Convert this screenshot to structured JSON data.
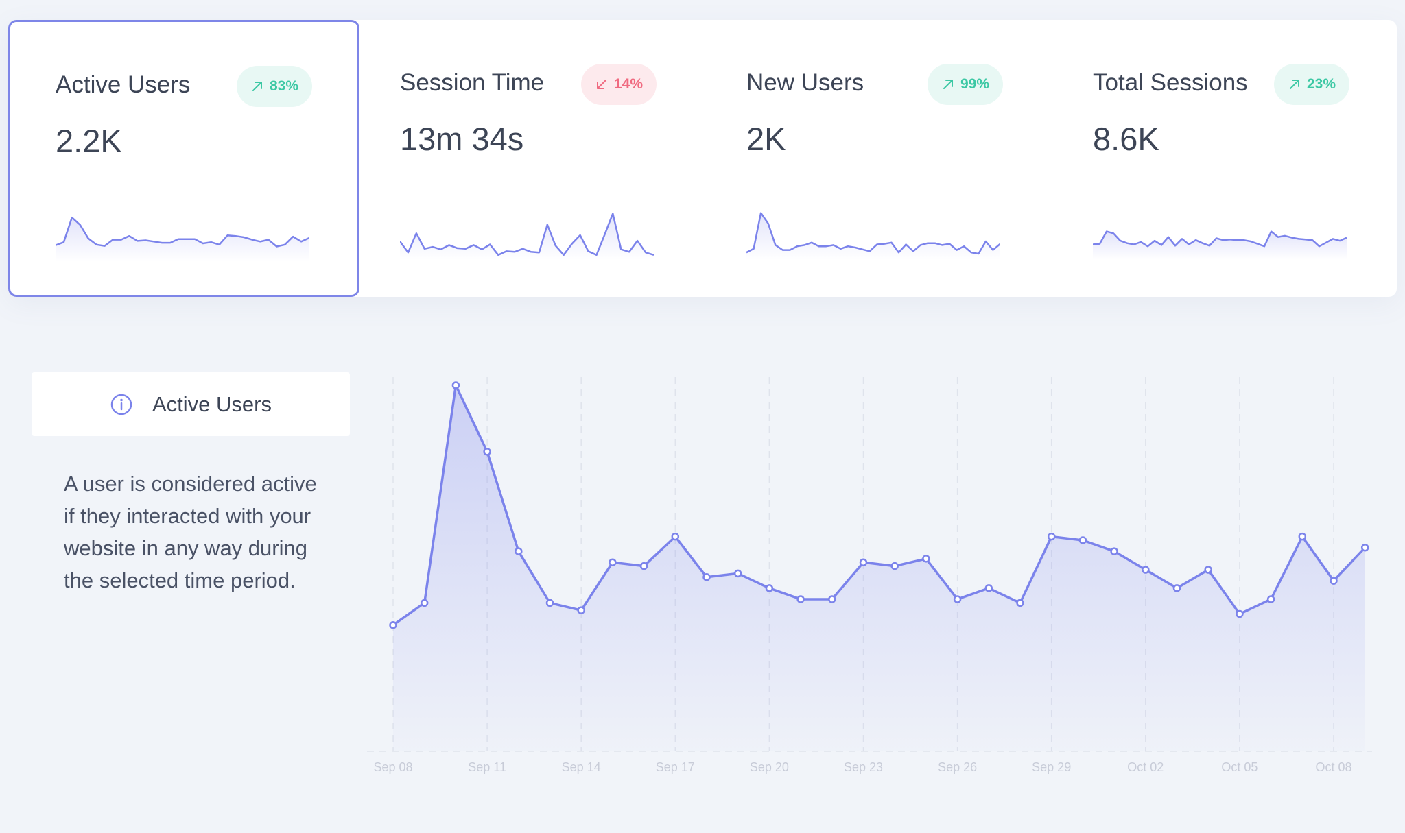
{
  "kpis": [
    {
      "title": "Active Users",
      "value": "2.2K",
      "badge": "83%",
      "direction": "up",
      "active": true,
      "spark": [
        27,
        32,
        72,
        60,
        38,
        28,
        26,
        36,
        36,
        42,
        34,
        35,
        33,
        31,
        31,
        37,
        37,
        37,
        30,
        32,
        28,
        43,
        42,
        40,
        36,
        33,
        36,
        25,
        28,
        41,
        33,
        39
      ]
    },
    {
      "title": "Session Time",
      "value": "13m 34s",
      "badge": "14%",
      "direction": "down",
      "active": false,
      "spark": [
        30,
        12,
        43,
        18,
        21,
        17,
        24,
        19,
        18,
        24,
        17,
        25,
        8,
        14,
        13,
        18,
        13,
        12,
        57,
        23,
        8,
        26,
        40,
        14,
        8,
        41,
        75,
        17,
        13,
        31,
        12,
        8
      ]
    },
    {
      "title": "New Users",
      "value": "2K",
      "badge": "99%",
      "direction": "up",
      "active": false,
      "spark": [
        12,
        18,
        76,
        59,
        24,
        16,
        16,
        22,
        24,
        28,
        22,
        22,
        24,
        18,
        22,
        20,
        17,
        14,
        25,
        26,
        28,
        12,
        25,
        14,
        24,
        27,
        27,
        24,
        26,
        16,
        22,
        12,
        10,
        30,
        16,
        26
      ]
    },
    {
      "title": "Total Sessions",
      "value": "8.6K",
      "badge": "23%",
      "direction": "up",
      "active": false,
      "spark": [
        25,
        26,
        46,
        43,
        31,
        27,
        25,
        29,
        22,
        31,
        24,
        37,
        23,
        34,
        25,
        32,
        27,
        23,
        35,
        32,
        33,
        32,
        32,
        30,
        26,
        22,
        46,
        37,
        39,
        36,
        34,
        33,
        32,
        22,
        28,
        34,
        31,
        36
      ]
    }
  ],
  "info": {
    "title": "Active Users",
    "description": "A user is considered active if they interacted with your website in any way during the selected time period."
  },
  "chart_data": {
    "type": "area",
    "title": "",
    "xlabel": "",
    "ylabel": "",
    "x": [
      "Sep 08",
      "Sep 09",
      "Sep 10",
      "Sep 11",
      "Sep 12",
      "Sep 13",
      "Sep 14",
      "Sep 15",
      "Sep 16",
      "Sep 17",
      "Sep 18",
      "Sep 19",
      "Sep 20",
      "Sep 21",
      "Sep 22",
      "Sep 23",
      "Sep 24",
      "Sep 25",
      "Sep 26",
      "Sep 27",
      "Sep 28",
      "Sep 29",
      "Sep 30",
      "Oct 01",
      "Oct 02",
      "Oct 03",
      "Oct 04",
      "Oct 05",
      "Oct 06",
      "Oct 07",
      "Oct 08",
      "Oct 09"
    ],
    "tick_labels": [
      "Sep 08",
      "Sep 11",
      "Sep 14",
      "Sep 17",
      "Sep 20",
      "Sep 23",
      "Sep 26",
      "Sep 29",
      "Oct 02",
      "Oct 05",
      "Oct 08"
    ],
    "series": [
      {
        "values": [
          35,
          41,
          100,
          82,
          55,
          41,
          39,
          52,
          51,
          59,
          48,
          49,
          45,
          42,
          42,
          52,
          51,
          53,
          42,
          45,
          41,
          59,
          58,
          55,
          50,
          45,
          50,
          38,
          42,
          59,
          47,
          56
        ]
      }
    ],
    "ylim": [
      0,
      100
    ],
    "grid": "vertical-dashed",
    "color": "#7b83eb"
  }
}
